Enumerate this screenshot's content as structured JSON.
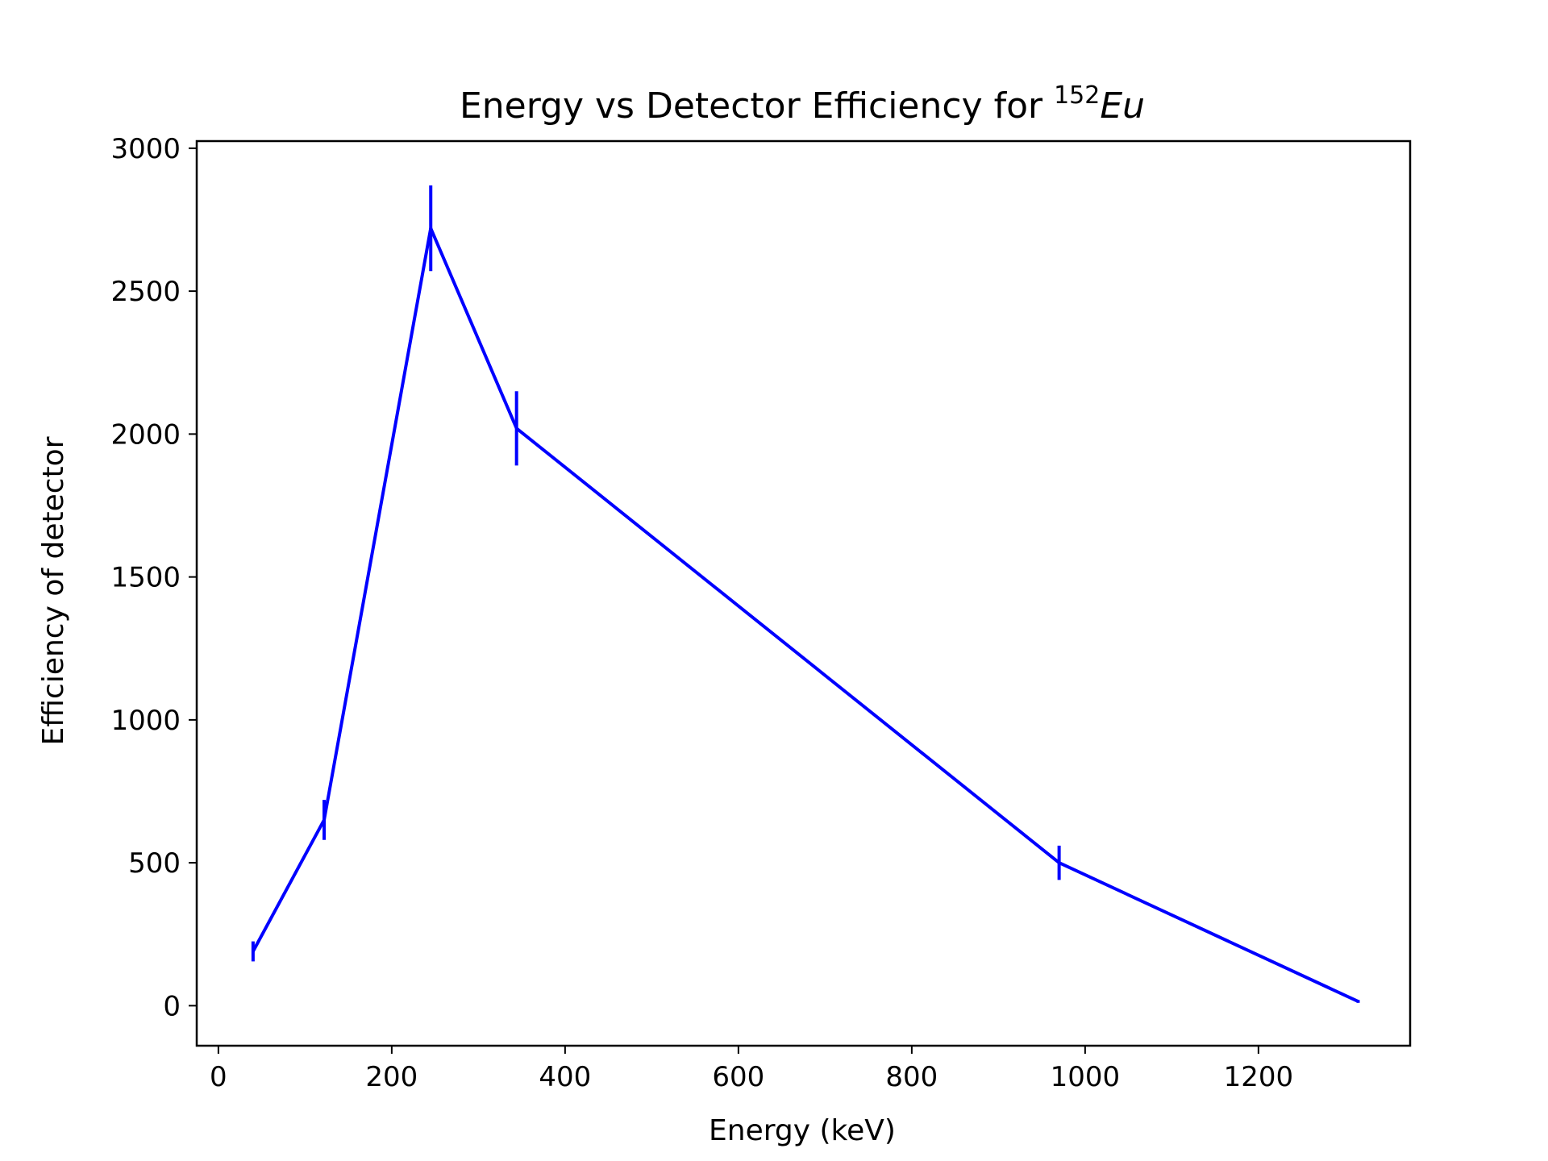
{
  "chart_data": {
    "type": "line",
    "title": {
      "main": "Energy vs Detector Efficiency for ",
      "superscript": "152",
      "italic": "Eu"
    },
    "xlabel": "Energy (keV)",
    "ylabel": "Efficiency of detector",
    "xlim": [
      -25,
      1375
    ],
    "ylim": [
      -140,
      3025
    ],
    "xticks": [
      0,
      200,
      400,
      600,
      800,
      1000,
      1200
    ],
    "xtick_labels": [
      "0",
      "200",
      "400",
      "600",
      "800",
      "1000",
      "1200"
    ],
    "yticks": [
      0,
      500,
      1000,
      1500,
      2000,
      2500,
      3000
    ],
    "ytick_labels": [
      "0",
      "500",
      "1000",
      "1500",
      "2000",
      "2500",
      "3000"
    ],
    "grid": false,
    "legend": "none",
    "series": [
      {
        "color": "#0000ff",
        "points": [
          {
            "x": 40,
            "y": 190,
            "yerr": 35
          },
          {
            "x": 122,
            "y": 650,
            "yerr": 70
          },
          {
            "x": 245,
            "y": 2720,
            "yerr": 150
          },
          {
            "x": 344,
            "y": 2020,
            "yerr": 130
          },
          {
            "x": 970,
            "y": 500,
            "yerr": 60
          },
          {
            "x": 1315,
            "y": 15,
            "yerr": 5
          }
        ]
      }
    ]
  }
}
